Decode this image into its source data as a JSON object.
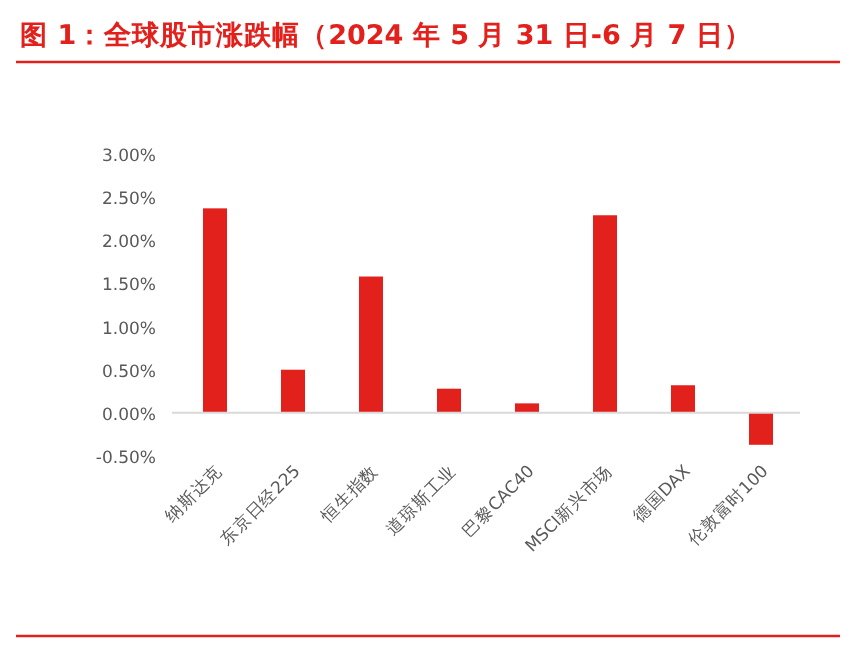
{
  "chart_data": {
    "type": "bar",
    "title": "图 1：全球股市涨跌幅（2024 年 5 月 31 日-6 月 7 日）",
    "categories": [
      "纳斯达克",
      "东京日经225",
      "恒生指数",
      "道琼斯工业",
      "巴黎CAC40",
      "MSCI新兴市场",
      "德国DAX",
      "伦敦富时100"
    ],
    "values": [
      2.37,
      0.5,
      1.58,
      0.28,
      0.11,
      2.29,
      0.32,
      -0.37
    ],
    "color": "#e2201c",
    "ylim": [
      -0.5,
      3
    ],
    "yticks": [
      {
        "value": -0.5,
        "label": "-0.50%"
      },
      {
        "value": 0,
        "label": "0.00%"
      },
      {
        "value": 0.5,
        "label": "0.50%"
      },
      {
        "value": 1,
        "label": "1.00%"
      },
      {
        "value": 1.5,
        "label": "1.50%"
      },
      {
        "value": 2,
        "label": "2.00%"
      },
      {
        "value": 2.5,
        "label": "2.50%"
      },
      {
        "value": 3,
        "label": "3.00%"
      }
    ],
    "legend": false
  }
}
